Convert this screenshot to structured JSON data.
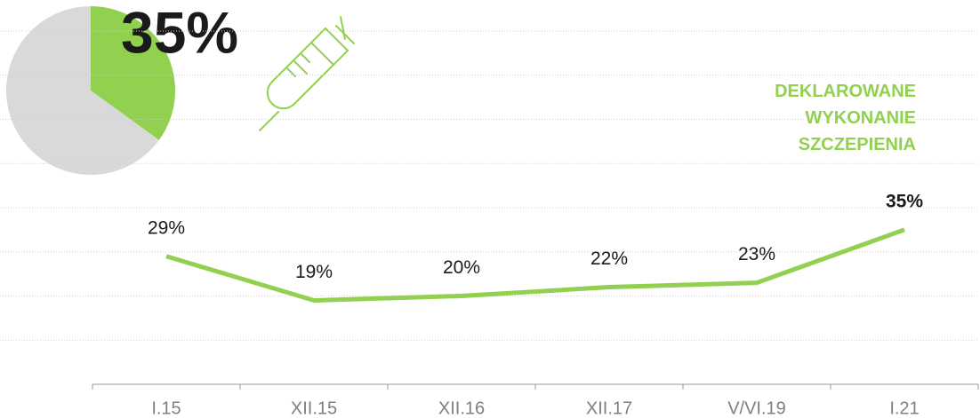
{
  "chart_data": [
    {
      "type": "pie",
      "values": [
        35,
        65
      ],
      "value_labels": [
        "35%",
        null
      ],
      "colors": [
        "#92d050",
        "#d9d9d9"
      ]
    },
    {
      "type": "line",
      "categories": [
        "I.15",
        "XII.15",
        "XII.16",
        "XII.17",
        "V/VI.19",
        "I.21"
      ],
      "series": [
        {
          "name": "DEKLAROWANE WYKONANIE SZCZEPIENIA",
          "color": "#92d050",
          "values": [
            29,
            19,
            20,
            22,
            23,
            35
          ],
          "value_labels": [
            "29%",
            "19%",
            "20%",
            "22%",
            "23%",
            "35%"
          ]
        }
      ],
      "bold_label": 5,
      "ylim": [
        0,
        80
      ],
      "yticks": [
        0,
        10,
        20,
        30,
        40,
        50,
        60,
        70,
        80
      ],
      "grid": true
    }
  ]
}
